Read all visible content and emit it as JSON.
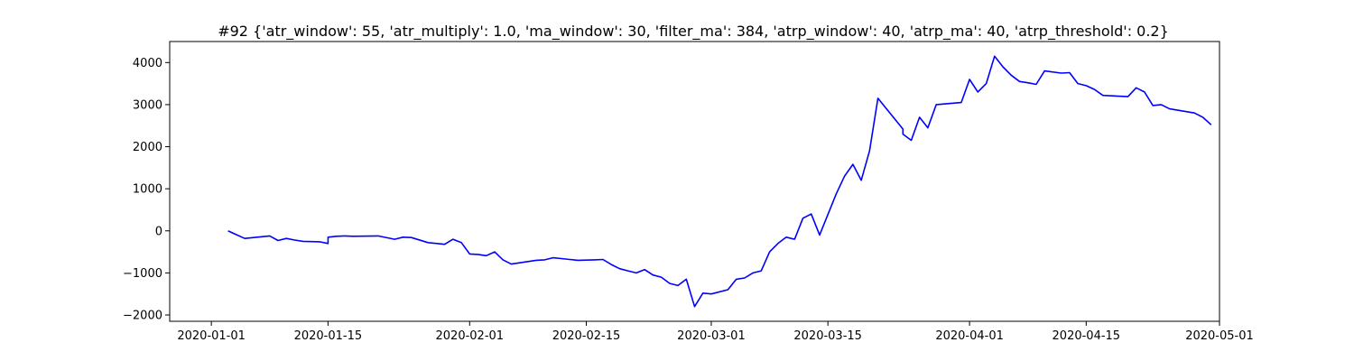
{
  "chart_data": {
    "type": "line",
    "title": "#92 {'atr_window': 55, 'atr_multiply': 1.0, 'ma_window': 30, 'filter_ma': 384, 'atrp_window': 40, 'atrp_ma': 40, 'atrp_threshold': 0.2}",
    "xlabel": "",
    "ylabel": "",
    "xlim": [
      "2019-12-27",
      "2020-05-01"
    ],
    "ylim": [
      -2150,
      4500
    ],
    "grid": false,
    "x_ticks": [
      "2020-01-01",
      "2020-01-15",
      "2020-02-01",
      "2020-02-15",
      "2020-03-01",
      "2020-03-15",
      "2020-04-01",
      "2020-04-15",
      "2020-05-01"
    ],
    "y_ticks": [
      -2000,
      -1000,
      0,
      1000,
      2000,
      3000,
      4000
    ],
    "series": [
      {
        "color": "#0000ff",
        "x": [
          "2020-01-03",
          "2020-01-04",
          "2020-01-05",
          "2020-01-08",
          "2020-01-09",
          "2020-01-10",
          "2020-01-11",
          "2020-01-12",
          "2020-01-14",
          "2020-01-15",
          "2020-01-15",
          "2020-01-16",
          "2020-01-17",
          "2020-01-18",
          "2020-01-21",
          "2020-01-23",
          "2020-01-24",
          "2020-01-25",
          "2020-01-27",
          "2020-01-29",
          "2020-01-30",
          "2020-01-31",
          "2020-02-01",
          "2020-02-02",
          "2020-02-03",
          "2020-02-04",
          "2020-02-05",
          "2020-02-06",
          "2020-02-07",
          "2020-02-09",
          "2020-02-10",
          "2020-02-11",
          "2020-02-12",
          "2020-02-13",
          "2020-02-14",
          "2020-02-16",
          "2020-02-17",
          "2020-02-18",
          "2020-02-19",
          "2020-02-20",
          "2020-02-21",
          "2020-02-22",
          "2020-02-23",
          "2020-02-24",
          "2020-02-25",
          "2020-02-26",
          "2020-02-27",
          "2020-02-28",
          "2020-02-29",
          "2020-03-01",
          "2020-03-03",
          "2020-03-04",
          "2020-03-05",
          "2020-03-06",
          "2020-03-07",
          "2020-03-08",
          "2020-03-09",
          "2020-03-10",
          "2020-03-11",
          "2020-03-12",
          "2020-03-13",
          "2020-03-14",
          "2020-03-16",
          "2020-03-17",
          "2020-03-18",
          "2020-03-19",
          "2020-03-20",
          "2020-03-21",
          "2020-03-24",
          "2020-03-24",
          "2020-03-25",
          "2020-03-26",
          "2020-03-27",
          "2020-03-28",
          "2020-03-31",
          "2020-04-01",
          "2020-04-02",
          "2020-04-03",
          "2020-04-04",
          "2020-04-05",
          "2020-04-06",
          "2020-04-07",
          "2020-04-08",
          "2020-04-09",
          "2020-04-10",
          "2020-04-12",
          "2020-04-13",
          "2020-04-14",
          "2020-04-15",
          "2020-04-16",
          "2020-04-17",
          "2020-04-20",
          "2020-04-21",
          "2020-04-22",
          "2020-04-23",
          "2020-04-24",
          "2020-04-25",
          "2020-04-28",
          "2020-04-29",
          "2020-04-30"
        ],
        "y": [
          0,
          -90,
          -180,
          -120,
          -230,
          -180,
          -220,
          -250,
          -260,
          -300,
          -150,
          -130,
          -120,
          -130,
          -120,
          -200,
          -150,
          -160,
          -280,
          -320,
          -200,
          -280,
          -550,
          -560,
          -590,
          -500,
          -690,
          -790,
          -760,
          -700,
          -690,
          -640,
          -660,
          -680,
          -700,
          -690,
          -680,
          -800,
          -900,
          -950,
          -1000,
          -920,
          -1050,
          -1100,
          -1250,
          -1300,
          -1150,
          -1800,
          -1480,
          -1500,
          -1400,
          -1150,
          -1120,
          -1000,
          -950,
          -500,
          -300,
          -150,
          -200,
          300,
          400,
          -100,
          880,
          1300,
          1580,
          1200,
          1900,
          3150,
          2420,
          2300,
          2150,
          2700,
          2450,
          3000,
          3050,
          3600,
          3300,
          3500,
          4150,
          3900,
          3700,
          3550,
          3520,
          3480,
          3800,
          3750,
          3760,
          3500,
          3450,
          3360,
          3220,
          3190,
          3400,
          3300,
          2980,
          3000,
          2900,
          2800,
          2700,
          2520
        ]
      }
    ]
  }
}
